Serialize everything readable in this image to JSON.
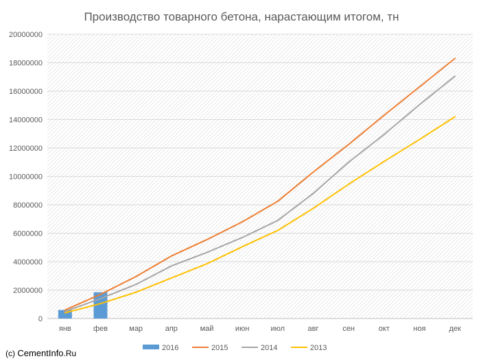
{
  "chart_data": {
    "type": "line",
    "title": "Производство товарного бетона, нарастающим итогом, тн",
    "categories": [
      "янв",
      "фев",
      "мар",
      "апр",
      "май",
      "июн",
      "июл",
      "авг",
      "сен",
      "окт",
      "ноя",
      "дек"
    ],
    "ylim": [
      0,
      20000000
    ],
    "yticks": [
      0,
      2000000,
      4000000,
      6000000,
      8000000,
      10000000,
      12000000,
      14000000,
      16000000,
      18000000,
      20000000
    ],
    "ytick_labels": [
      "0",
      "2000000",
      "4000000",
      "6000000",
      "8000000",
      "10000000",
      "12000000",
      "14000000",
      "16000000",
      "18000000",
      "20000000"
    ],
    "grid": true,
    "legend_position": "bottom",
    "series": [
      {
        "name": "2016",
        "type": "bar",
        "color": "#5b9bd5",
        "values": [
          600000,
          1850000,
          null,
          null,
          null,
          null,
          null,
          null,
          null,
          null,
          null,
          null
        ]
      },
      {
        "name": "2015",
        "type": "line",
        "color": "#ed7d31",
        "values": [
          600000,
          1700000,
          2950000,
          4400000,
          5550000,
          6800000,
          8250000,
          10300000,
          12250000,
          14300000,
          16300000,
          18300000
        ]
      },
      {
        "name": "2014",
        "type": "line",
        "color": "#a5a5a5",
        "values": [
          500000,
          1400000,
          2400000,
          3700000,
          4650000,
          5700000,
          6900000,
          8800000,
          11000000,
          12950000,
          15050000,
          17050000
        ]
      },
      {
        "name": "2013",
        "type": "line",
        "color": "#ffc000",
        "values": [
          400000,
          1050000,
          1850000,
          2850000,
          3850000,
          5050000,
          6200000,
          7750000,
          9450000,
          11050000,
          12600000,
          14200000
        ]
      }
    ]
  },
  "watermark": {
    "prefix": "(c) ",
    "site": "CementInfo",
    "suffix": ".Ru"
  }
}
